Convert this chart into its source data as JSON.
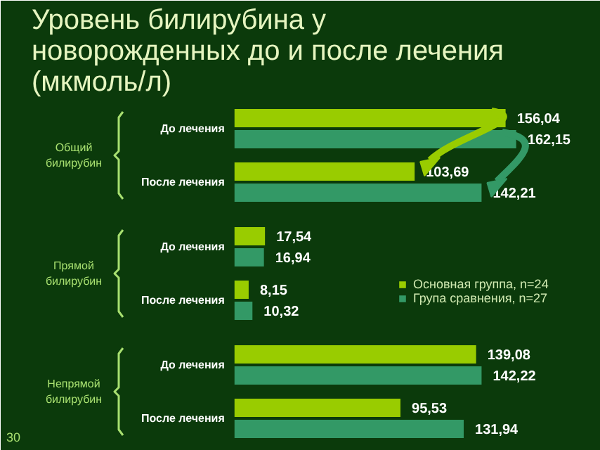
{
  "chart_data": {
    "type": "bar",
    "orientation": "horizontal",
    "title": "Уровень билирубина у новорожденных до и после лечения (мкмоль/л)",
    "categories": [
      "До лечения",
      "После лечения",
      "До лечения",
      "После лечения",
      "До лечения",
      "После лечения"
    ],
    "series": [
      {
        "name": "Основная группа, n=24",
        "color": "#99cc00",
        "values": [
          156.04,
          103.69,
          17.54,
          8.15,
          139.08,
          95.53
        ],
        "value_labels": [
          "156,04",
          "103,69",
          "17,54",
          "8,15",
          "139,08",
          "95,53"
        ]
      },
      {
        "name": "Група сравнения, n=27",
        "color": "#339966",
        "values": [
          162.15,
          142.21,
          16.94,
          10.32,
          142.22,
          131.94
        ],
        "value_labels": [
          "162,15",
          "142,21",
          "16,94",
          "10,32",
          "142,22",
          "131,94"
        ]
      }
    ],
    "annotations": [
      "Общий билирубин",
      "Прямой билирубин",
      "Непрямой билирубин",
      "30"
    ],
    "legend": "right",
    "grid": false
  }
}
